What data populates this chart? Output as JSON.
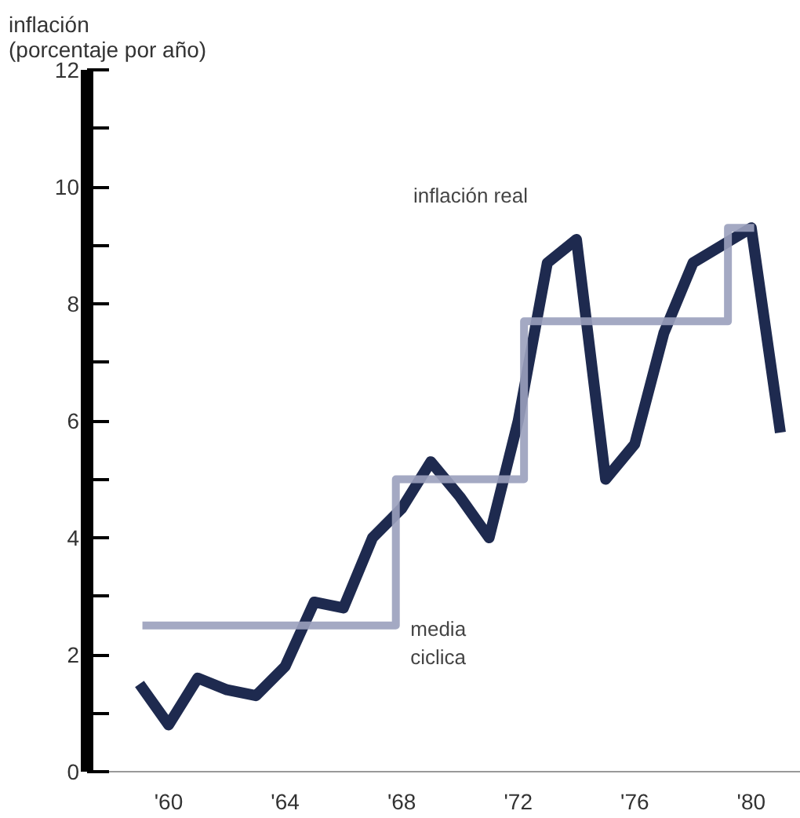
{
  "chart_data": {
    "type": "line",
    "ylabel": "inflación\n(porcentaje por año)",
    "x": [
      1959,
      1960,
      1961,
      1962,
      1963,
      1964,
      1965,
      1966,
      1967,
      1968,
      1969,
      1970,
      1971,
      1972,
      1973,
      1974,
      1975,
      1976,
      1977,
      1978,
      1979,
      1980,
      1981
    ],
    "series": [
      {
        "name": "inflación real",
        "color": "#1e2a4f",
        "values": [
          1.5,
          0.8,
          1.6,
          1.4,
          1.3,
          1.8,
          2.9,
          2.8,
          4.0,
          4.5,
          5.3,
          4.7,
          4.0,
          6.0,
          8.7,
          9.1,
          5.0,
          5.6,
          7.5,
          8.7,
          9.0,
          9.3,
          5.8
        ]
      },
      {
        "name": "media\nciclica",
        "type": "step",
        "color": "#9aa0bc",
        "x": [
          1959.1,
          1967.8,
          1972.2,
          1979.2,
          1980.1
        ],
        "values": [
          2.5,
          5.0,
          7.7,
          9.3,
          9.3
        ]
      }
    ],
    "xlim": [
      1957.2,
      1981.7
    ],
    "ylim": [
      0,
      12
    ],
    "xticks": [
      {
        "value": 1960,
        "label": "'60"
      },
      {
        "value": 1964,
        "label": "'64"
      },
      {
        "value": 1968,
        "label": "'68"
      },
      {
        "value": 1972,
        "label": "'72"
      },
      {
        "value": 1976,
        "label": "'76"
      },
      {
        "value": 1980,
        "label": "'80"
      }
    ],
    "yticks": [
      0,
      {
        "value": 1,
        "label": null
      },
      2,
      {
        "value": 3,
        "label": null
      },
      4,
      {
        "value": 5,
        "label": null
      },
      6,
      {
        "value": 7,
        "label": null
      },
      8,
      {
        "value": 9,
        "label": null
      },
      10,
      {
        "value": 11,
        "label": null
      },
      12
    ],
    "grid": false,
    "marker": "none",
    "line_style": "solid"
  }
}
